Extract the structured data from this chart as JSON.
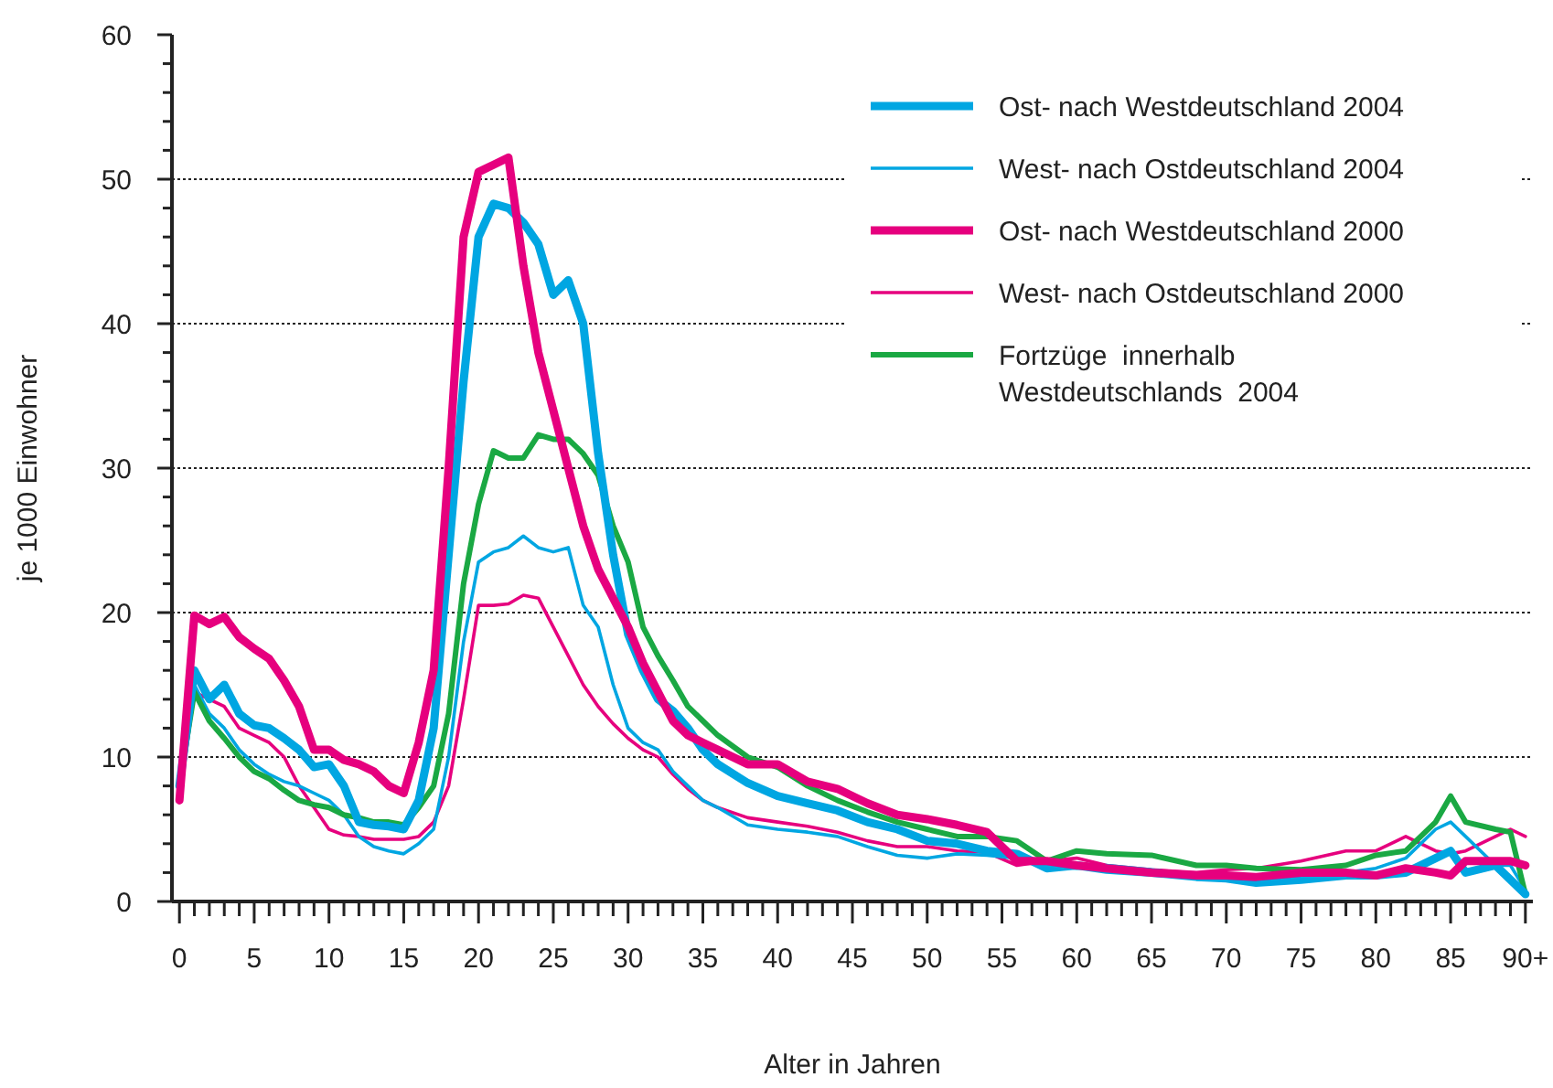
{
  "chart_data": {
    "type": "line",
    "xlabel": "Alter in Jahren",
    "ylabel": "je 1000 Einwohner",
    "x": [
      0,
      1,
      2,
      3,
      4,
      5,
      6,
      7,
      8,
      9,
      10,
      11,
      12,
      13,
      14,
      15,
      16,
      17,
      18,
      19,
      20,
      21,
      22,
      23,
      24,
      25,
      26,
      27,
      28,
      29,
      30,
      31,
      32,
      33,
      34,
      35,
      36,
      38,
      40,
      42,
      44,
      46,
      48,
      50,
      52,
      54,
      56,
      58,
      60,
      62,
      65,
      68,
      70,
      72,
      75,
      78,
      80,
      82,
      84,
      85,
      86,
      88,
      89,
      90
    ],
    "xlim": [
      -0.5,
      90.5
    ],
    "ylim": [
      0,
      60
    ],
    "xticks": [
      0,
      {
        "value": 1,
        "label": null
      },
      {
        "value": 2,
        "label": null
      },
      {
        "value": 3,
        "label": null
      },
      {
        "value": 4,
        "label": null
      },
      5,
      {
        "value": 6,
        "label": null
      },
      {
        "value": 7,
        "label": null
      },
      {
        "value": 8,
        "label": null
      },
      {
        "value": 9,
        "label": null
      },
      10,
      {
        "value": 11,
        "label": null
      },
      {
        "value": 12,
        "label": null
      },
      {
        "value": 13,
        "label": null
      },
      {
        "value": 14,
        "label": null
      },
      15,
      {
        "value": 16,
        "label": null
      },
      {
        "value": 17,
        "label": null
      },
      {
        "value": 18,
        "label": null
      },
      {
        "value": 19,
        "label": null
      },
      20,
      {
        "value": 21,
        "label": null
      },
      {
        "value": 22,
        "label": null
      },
      {
        "value": 23,
        "label": null
      },
      {
        "value": 24,
        "label": null
      },
      25,
      {
        "value": 26,
        "label": null
      },
      {
        "value": 27,
        "label": null
      },
      {
        "value": 28,
        "label": null
      },
      {
        "value": 29,
        "label": null
      },
      30,
      {
        "value": 31,
        "label": null
      },
      {
        "value": 32,
        "label": null
      },
      {
        "value": 33,
        "label": null
      },
      {
        "value": 34,
        "label": null
      },
      35,
      {
        "value": 36,
        "label": null
      },
      {
        "value": 37,
        "label": null
      },
      {
        "value": 38,
        "label": null
      },
      {
        "value": 39,
        "label": null
      },
      40,
      {
        "value": 41,
        "label": null
      },
      {
        "value": 42,
        "label": null
      },
      {
        "value": 43,
        "label": null
      },
      {
        "value": 44,
        "label": null
      },
      45,
      {
        "value": 46,
        "label": null
      },
      {
        "value": 47,
        "label": null
      },
      {
        "value": 48,
        "label": null
      },
      {
        "value": 49,
        "label": null
      },
      50,
      {
        "value": 51,
        "label": null
      },
      {
        "value": 52,
        "label": null
      },
      {
        "value": 53,
        "label": null
      },
      {
        "value": 54,
        "label": null
      },
      55,
      {
        "value": 56,
        "label": null
      },
      {
        "value": 57,
        "label": null
      },
      {
        "value": 58,
        "label": null
      },
      {
        "value": 59,
        "label": null
      },
      60,
      {
        "value": 61,
        "label": null
      },
      {
        "value": 62,
        "label": null
      },
      {
        "value": 63,
        "label": null
      },
      {
        "value": 64,
        "label": null
      },
      65,
      {
        "value": 66,
        "label": null
      },
      {
        "value": 67,
        "label": null
      },
      {
        "value": 68,
        "label": null
      },
      {
        "value": 69,
        "label": null
      },
      70,
      {
        "value": 71,
        "label": null
      },
      {
        "value": 72,
        "label": null
      },
      {
        "value": 73,
        "label": null
      },
      {
        "value": 74,
        "label": null
      },
      75,
      {
        "value": 76,
        "label": null
      },
      {
        "value": 77,
        "label": null
      },
      {
        "value": 78,
        "label": null
      },
      {
        "value": 79,
        "label": null
      },
      80,
      {
        "value": 81,
        "label": null
      },
      {
        "value": 82,
        "label": null
      },
      {
        "value": 83,
        "label": null
      },
      {
        "value": 84,
        "label": null
      },
      85,
      {
        "value": 86,
        "label": null
      },
      {
        "value": 87,
        "label": null
      },
      {
        "value": 88,
        "label": null
      },
      {
        "value": 89,
        "label": null
      },
      {
        "value": 90,
        "label": "90+"
      }
    ],
    "yticks": [
      0,
      {
        "value": 2,
        "label": null
      },
      {
        "value": 4,
        "label": null
      },
      {
        "value": 6,
        "label": null
      },
      {
        "value": 8,
        "label": null
      },
      10,
      {
        "value": 12,
        "label": null
      },
      {
        "value": 14,
        "label": null
      },
      {
        "value": 16,
        "label": null
      },
      {
        "value": 18,
        "label": null
      },
      20,
      {
        "value": 22,
        "label": null
      },
      {
        "value": 24,
        "label": null
      },
      {
        "value": 26,
        "label": null
      },
      {
        "value": 28,
        "label": null
      },
      30,
      {
        "value": 32,
        "label": null
      },
      {
        "value": 34,
        "label": null
      },
      {
        "value": 36,
        "label": null
      },
      {
        "value": 38,
        "label": null
      },
      40,
      {
        "value": 42,
        "label": null
      },
      {
        "value": 44,
        "label": null
      },
      {
        "value": 46,
        "label": null
      },
      {
        "value": 48,
        "label": null
      },
      50,
      {
        "value": 52,
        "label": null
      },
      {
        "value": 54,
        "label": null
      },
      {
        "value": 56,
        "label": null
      },
      {
        "value": 58,
        "label": null
      },
      60
    ],
    "grid": "y",
    "legend": "top right",
    "line_style": "solid",
    "series": [
      {
        "name": "Ost- nach Westdeutschland 2004",
        "color": "#00a6e2",
        "values": [
          8,
          16,
          14,
          15,
          13,
          12.2,
          12,
          11.3,
          10.5,
          9.3,
          9.5,
          8,
          5.5,
          5.3,
          5.2,
          5,
          7,
          12,
          24,
          36,
          46,
          48.3,
          48,
          47,
          45.5,
          42,
          43,
          40,
          31,
          24,
          18.5,
          16,
          14,
          13.2,
          12,
          10.5,
          9.5,
          8.2,
          7.3,
          6.8,
          6.3,
          5.5,
          5,
          4.2,
          4,
          3.5,
          3.3,
          2.3,
          2.5,
          2.2,
          2,
          1.7,
          1.6,
          1.3,
          1.5,
          1.8,
          1.8,
          2,
          3,
          3.5,
          2,
          2.5,
          1.5,
          0.5
        ]
      },
      {
        "name": "West- nach Ostdeutschland 2004",
        "color": "#00a6e2",
        "values": [
          8,
          15,
          13,
          12,
          10.5,
          9.5,
          8.8,
          8.3,
          8,
          7.5,
          7,
          6,
          4.5,
          3.8,
          3.5,
          3.3,
          4,
          5,
          10,
          18,
          23.5,
          24.2,
          24.5,
          25.3,
          24.5,
          24.2,
          24.5,
          20.5,
          19,
          15,
          12,
          11,
          10.5,
          9,
          8,
          7,
          6.5,
          5.3,
          5,
          4.8,
          4.5,
          3.8,
          3.2,
          3,
          3.3,
          3.2,
          3,
          2.5,
          2.3,
          2.5,
          2.2,
          1.8,
          1.8,
          1.5,
          2,
          2,
          2.3,
          3,
          5,
          5.5,
          4.5,
          2.5,
          2.5,
          0.8
        ]
      },
      {
        "name": "Ost- nach Westdeutschland 2000",
        "color": "#e6007e",
        "values": [
          7,
          19.8,
          19.2,
          19.7,
          18.3,
          17.5,
          16.8,
          15.3,
          13.5,
          10.5,
          10.5,
          9.8,
          9.5,
          9,
          8,
          7.5,
          11,
          16,
          30,
          46,
          50.5,
          51,
          51.5,
          44,
          38,
          34,
          30,
          26,
          23,
          21,
          19,
          16.5,
          14.5,
          12.5,
          11.5,
          11,
          10.5,
          9.5,
          9.5,
          8.3,
          7.8,
          6.8,
          6,
          5.7,
          5.3,
          4.8,
          2.8,
          2.8,
          2.5,
          2.3,
          2,
          1.8,
          1.8,
          1.7,
          2,
          2,
          1.8,
          2.3,
          2,
          1.8,
          2.8,
          2.8,
          2.8,
          2.5
        ]
      },
      {
        "name": "West- nach Ostdeutschland 2000",
        "color": "#e6007e",
        "values": [
          7,
          14.5,
          14,
          13.5,
          12,
          11.5,
          11,
          10,
          8,
          6.5,
          5,
          4.6,
          4.5,
          4.3,
          4.3,
          4.3,
          4.5,
          5.5,
          8,
          14,
          20.5,
          20.5,
          20.6,
          21.2,
          21,
          19,
          17,
          15,
          13.5,
          12.3,
          11.3,
          10.5,
          10,
          8.8,
          7.8,
          7,
          6.5,
          5.8,
          5.5,
          5.2,
          4.8,
          4.2,
          3.8,
          3.8,
          3.5,
          3.4,
          2.5,
          2.8,
          3,
          2.5,
          2.2,
          2,
          2.2,
          2.3,
          2.8,
          3.5,
          3.5,
          4.5,
          3.5,
          3.3,
          3.5,
          4.5,
          5,
          4.5
        ]
      },
      {
        "name": "Fortzüge  innerhalb Westdeutschlands  2004",
        "color": "#1aa843",
        "values": [
          8,
          14.5,
          12.5,
          11.3,
          10,
          9,
          8.5,
          7.7,
          7,
          6.7,
          6.5,
          6,
          5.8,
          5.5,
          5.5,
          5.3,
          6.5,
          8,
          13,
          22,
          27.5,
          31.2,
          30.7,
          30.7,
          32.3,
          32,
          32,
          31,
          29.5,
          26,
          23.5,
          19,
          17,
          15.3,
          13.5,
          12.5,
          11.5,
          10,
          9.3,
          8,
          7,
          6.2,
          5.5,
          5,
          4.5,
          4.5,
          4.2,
          2.8,
          3.5,
          3.3,
          3.2,
          2.5,
          2.5,
          2.3,
          2.2,
          2.5,
          3.2,
          3.5,
          5.5,
          7.3,
          5.5,
          5,
          4.8,
          0.5
        ]
      }
    ]
  }
}
